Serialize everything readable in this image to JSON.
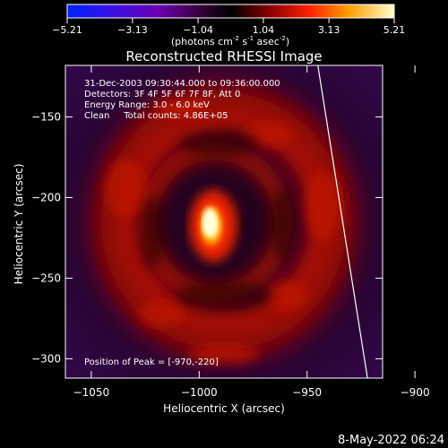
{
  "colorbar": {
    "ticks": [
      "-5.21",
      "-3.13",
      "-1.04",
      "1.04",
      "3.13",
      "5.21"
    ],
    "range": [
      -5.21,
      5.21
    ],
    "units_label": "(photons cm",
    "units_exp1": "-2",
    "units_mid": " s",
    "units_exp2": "-1",
    "units_end": " asec",
    "units_exp3": "-2",
    "units_close": ")"
  },
  "chart_data": {
    "type": "heatmap",
    "title": "Reconstructed RHESSI Image",
    "xlabel": "Heliocentric X (arcsec)",
    "ylabel": "Heliocentric Y (arcsec)",
    "xlim": [
      -1062,
      -915
    ],
    "ylim": [
      -312,
      -118
    ],
    "xticks": [
      -1050,
      -1000,
      -950,
      -900
    ],
    "yticks": [
      -150,
      -200,
      -250,
      -300
    ],
    "xtick_labels": [
      "−1050",
      "−1000",
      "−950",
      "−900"
    ],
    "ytick_labels": [
      "−150",
      "−200",
      "−250",
      "−300"
    ],
    "annotations": [
      "31-Dec-2003 09:30:44.000 to 09:36:00.000",
      "Detectors: 3F 4F 5F 6F 7F 8F, Att 0",
      "Energy Range: 3.0 - 6.0 keV",
      "Clean     Total counts: 4.86E+05"
    ],
    "peak_text": "Position of Peak = [-970,-220]",
    "peak": {
      "x": -970,
      "y": -220
    },
    "limb_line": [
      {
        "x": -945,
        "y": -118
      },
      {
        "x": -922,
        "y": -312
      }
    ],
    "colormap": [
      "#0022ff",
      "#5500cc",
      "#55006e",
      "#1a0012",
      "#330000",
      "#990000",
      "#ff3300",
      "#ff9900",
      "#ffff99",
      "#ffffff"
    ]
  },
  "footer": {
    "timestamp": "8-May-2022 06:24"
  }
}
